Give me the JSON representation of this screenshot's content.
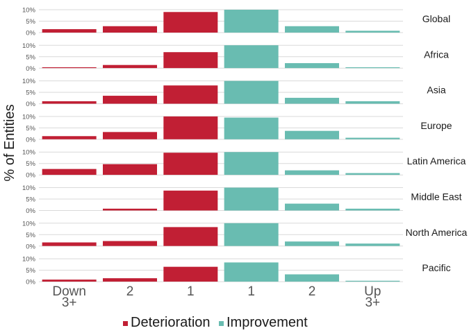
{
  "chart_data": {
    "type": "bar",
    "ylabel": "% of Entities",
    "ylim": [
      0,
      0.1
    ],
    "yticks": [
      "0%",
      "5%",
      "10%"
    ],
    "grid": true,
    "legend_position": "bottom",
    "categories": [
      {
        "lines": [
          "Down",
          "3+"
        ],
        "group": "Deterioration"
      },
      {
        "lines": [
          "2"
        ],
        "group": "Deterioration"
      },
      {
        "lines": [
          "1"
        ],
        "group": "Deterioration"
      },
      {
        "lines": [
          "1"
        ],
        "group": "Improvement"
      },
      {
        "lines": [
          "2"
        ],
        "group": "Improvement"
      },
      {
        "lines": [
          "Up",
          "3+"
        ],
        "group": "Improvement"
      }
    ],
    "legend": [
      {
        "name": "Deterioration",
        "color": "#c11f34"
      },
      {
        "name": "Improvement",
        "color": "#69bcb1"
      }
    ],
    "facets": [
      {
        "name": "Global",
        "values": [
          0.015,
          0.028,
          0.09,
          0.1,
          0.028,
          0.008
        ]
      },
      {
        "name": "Africa",
        "values": [
          0.004,
          0.014,
          0.07,
          0.115,
          0.022,
          0.004
        ]
      },
      {
        "name": "Asia",
        "values": [
          0.011,
          0.035,
          0.08,
          0.105,
          0.026,
          0.011
        ]
      },
      {
        "name": "Europe",
        "values": [
          0.014,
          0.032,
          0.105,
          0.095,
          0.037,
          0.007
        ]
      },
      {
        "name": "Latin America",
        "values": [
          0.026,
          0.047,
          0.097,
          0.105,
          0.02,
          0.008
        ]
      },
      {
        "name": "Middle East",
        "values": [
          0.0,
          0.008,
          0.087,
          0.102,
          0.03,
          0.008
        ]
      },
      {
        "name": "North America",
        "values": [
          0.016,
          0.022,
          0.083,
          0.102,
          0.02,
          0.011
        ]
      },
      {
        "name": "Pacific",
        "values": [
          0.009,
          0.015,
          0.065,
          0.084,
          0.032,
          0.004
        ]
      }
    ]
  }
}
